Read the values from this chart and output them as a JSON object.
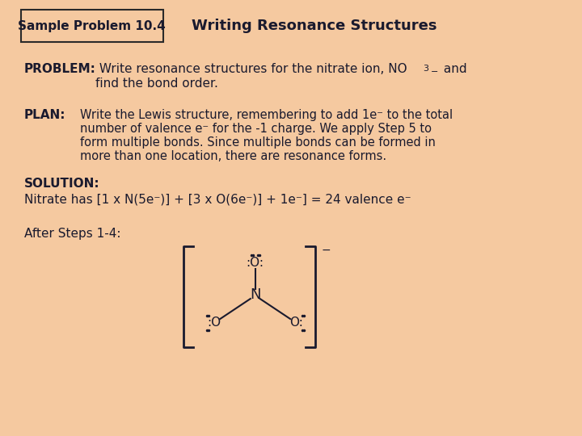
{
  "bg_color": "#F5C9A0",
  "title_box_text": "Sample Problem 10.4",
  "title_right_text": "Writing Resonance Structures",
  "problem_bold": "PROBLEM:",
  "problem_text": " Write resonance structures for the nitrate ion, NO",
  "problem_sub": "3",
  "problem_sup": "−",
  "problem_text2": " and",
  "problem_line2": "           find the bond order.",
  "plan_bold": "PLAN:",
  "plan_text": "  Write the Lewis structure, remembering to add 1e⁻ to the total\n         number of valence e⁻ for the -1 charge. We apply Step 5 to\n         form multiple bonds. Since multiple bonds can be formed in\n         more than one location, there are resonance forms.",
  "solution_bold": "SOLUTION:",
  "solution_text": "Nitrate has [1 x N(5e⁻)] + [3 x O(6e⁻)] + 1e⁻] = 24 valence e⁻",
  "after_steps_text": "After Steps 1-4:",
  "font_family": "DejaVu Sans",
  "text_color": "#1a1a2e",
  "box_edge_color": "#2a2a2a"
}
